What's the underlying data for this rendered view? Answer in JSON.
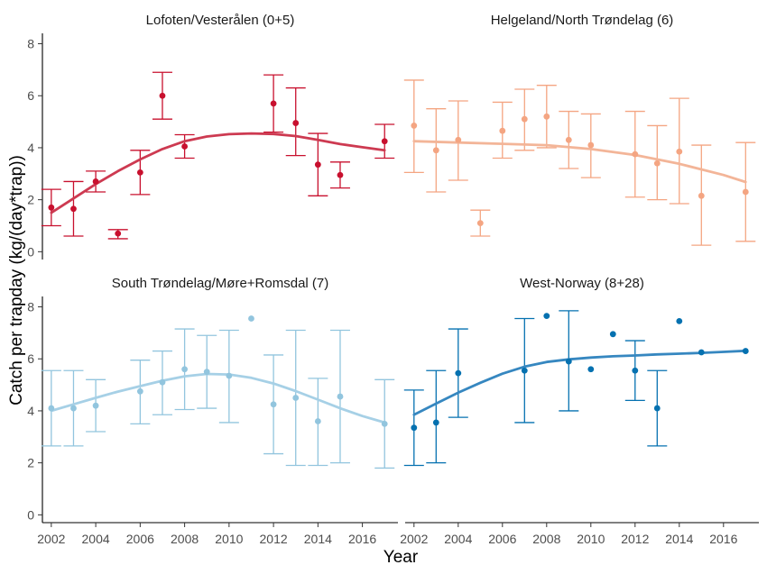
{
  "chart_data": {
    "type": "scatter",
    "xlabel": "Year",
    "ylabel": "Catch per trapday (kg/(day*trap))",
    "xlim": [
      2001.6,
      2017.6
    ],
    "ylim": [
      -0.3,
      8.4
    ],
    "x_ticks": [
      2002,
      2004,
      2006,
      2008,
      2010,
      2012,
      2014,
      2016
    ],
    "y_ticks": [
      0,
      2,
      4,
      6,
      8
    ],
    "grid": false,
    "legend": "none",
    "panels": [
      {
        "title": "Lofoten/Vesterålen (0+5)",
        "color": "#c8102e",
        "line_color": "#cd3a51",
        "points": [
          {
            "x": 2002,
            "y": 1.7,
            "lo": 1.0,
            "hi": 2.4
          },
          {
            "x": 2003,
            "y": 1.65,
            "lo": 0.6,
            "hi": 2.7
          },
          {
            "x": 2004,
            "y": 2.7,
            "lo": 2.3,
            "hi": 3.1
          },
          {
            "x": 2005,
            "y": 0.7,
            "lo": 0.5,
            "hi": 0.85
          },
          {
            "x": 2006,
            "y": 3.05,
            "lo": 2.2,
            "hi": 3.9
          },
          {
            "x": 2007,
            "y": 6.0,
            "lo": 5.1,
            "hi": 6.9
          },
          {
            "x": 2008,
            "y": 4.05,
            "lo": 3.6,
            "hi": 4.5
          },
          {
            "x": 2012,
            "y": 5.7,
            "lo": 4.6,
            "hi": 6.8
          },
          {
            "x": 2013,
            "y": 4.95,
            "lo": 3.7,
            "hi": 6.3
          },
          {
            "x": 2014,
            "y": 3.35,
            "lo": 2.15,
            "hi": 4.55
          },
          {
            "x": 2015,
            "y": 2.95,
            "lo": 2.45,
            "hi": 3.45
          },
          {
            "x": 2017,
            "y": 4.25,
            "lo": 3.6,
            "hi": 4.9
          }
        ],
        "trend": [
          [
            2002,
            1.5
          ],
          [
            2003,
            2.05
          ],
          [
            2004,
            2.6
          ],
          [
            2005,
            3.1
          ],
          [
            2006,
            3.55
          ],
          [
            2007,
            3.95
          ],
          [
            2008,
            4.25
          ],
          [
            2009,
            4.43
          ],
          [
            2010,
            4.52
          ],
          [
            2011,
            4.55
          ],
          [
            2012,
            4.53
          ],
          [
            2013,
            4.45
          ],
          [
            2014,
            4.3
          ],
          [
            2015,
            4.14
          ],
          [
            2016,
            4.02
          ],
          [
            2017,
            3.9
          ]
        ]
      },
      {
        "title": "Helgeland/North Trøndelag (6)",
        "color": "#f4a582",
        "line_color": "#f3b598",
        "points": [
          {
            "x": 2002,
            "y": 4.85,
            "lo": 3.05,
            "hi": 6.6
          },
          {
            "x": 2003,
            "y": 3.9,
            "lo": 2.3,
            "hi": 5.5
          },
          {
            "x": 2004,
            "y": 4.3,
            "lo": 2.75,
            "hi": 5.8
          },
          {
            "x": 2005,
            "y": 1.1,
            "lo": 0.6,
            "hi": 1.6
          },
          {
            "x": 2006,
            "y": 4.65,
            "lo": 3.6,
            "hi": 5.75
          },
          {
            "x": 2007,
            "y": 5.1,
            "lo": 3.9,
            "hi": 6.25
          },
          {
            "x": 2008,
            "y": 5.2,
            "lo": 4.0,
            "hi": 6.4
          },
          {
            "x": 2009,
            "y": 4.3,
            "lo": 3.2,
            "hi": 5.4
          },
          {
            "x": 2010,
            "y": 4.1,
            "lo": 2.85,
            "hi": 5.3
          },
          {
            "x": 2012,
            "y": 3.75,
            "lo": 2.1,
            "hi": 5.4
          },
          {
            "x": 2013,
            "y": 3.4,
            "lo": 2.0,
            "hi": 4.85
          },
          {
            "x": 2014,
            "y": 3.85,
            "lo": 1.85,
            "hi": 5.9
          },
          {
            "x": 2015,
            "y": 2.15,
            "lo": 0.25,
            "hi": 4.1
          },
          {
            "x": 2017,
            "y": 2.3,
            "lo": 0.4,
            "hi": 4.2
          }
        ],
        "trend": [
          [
            2002,
            4.25
          ],
          [
            2004,
            4.2
          ],
          [
            2006,
            4.15
          ],
          [
            2008,
            4.1
          ],
          [
            2010,
            3.95
          ],
          [
            2012,
            3.72
          ],
          [
            2014,
            3.38
          ],
          [
            2016,
            2.95
          ],
          [
            2017,
            2.68
          ]
        ]
      },
      {
        "title": "South Trøndelag/Møre+Romsdal (7)",
        "color": "#92c5de",
        "line_color": "#a6d0e6",
        "points": [
          {
            "x": 2002,
            "y": 4.1,
            "lo": 2.65,
            "hi": 5.55
          },
          {
            "x": 2003,
            "y": 4.1,
            "lo": 2.65,
            "hi": 5.55
          },
          {
            "x": 2004,
            "y": 4.2,
            "lo": 3.2,
            "hi": 5.2
          },
          {
            "x": 2006,
            "y": 4.75,
            "lo": 3.5,
            "hi": 5.95
          },
          {
            "x": 2007,
            "y": 5.1,
            "lo": 3.85,
            "hi": 6.3
          },
          {
            "x": 2008,
            "y": 5.6,
            "lo": 4.05,
            "hi": 7.15
          },
          {
            "x": 2009,
            "y": 5.5,
            "lo": 4.1,
            "hi": 6.9
          },
          {
            "x": 2010,
            "y": 5.35,
            "lo": 3.55,
            "hi": 7.1
          },
          {
            "x": 2011,
            "y": 7.55,
            "lo": null,
            "hi": null
          },
          {
            "x": 2012,
            "y": 4.25,
            "lo": 2.35,
            "hi": 6.15
          },
          {
            "x": 2013,
            "y": 4.5,
            "lo": 1.9,
            "hi": 7.1
          },
          {
            "x": 2014,
            "y": 3.6,
            "lo": 1.9,
            "hi": 5.25
          },
          {
            "x": 2015,
            "y": 4.55,
            "lo": 2.0,
            "hi": 7.1
          },
          {
            "x": 2017,
            "y": 3.5,
            "lo": 1.8,
            "hi": 5.2
          }
        ],
        "trend": [
          [
            2002,
            4.0
          ],
          [
            2003,
            4.25
          ],
          [
            2004,
            4.5
          ],
          [
            2005,
            4.74
          ],
          [
            2006,
            4.95
          ],
          [
            2007,
            5.16
          ],
          [
            2008,
            5.33
          ],
          [
            2009,
            5.42
          ],
          [
            2010,
            5.4
          ],
          [
            2011,
            5.27
          ],
          [
            2012,
            5.05
          ],
          [
            2013,
            4.76
          ],
          [
            2014,
            4.43
          ],
          [
            2015,
            4.1
          ],
          [
            2016,
            3.8
          ],
          [
            2017,
            3.55
          ]
        ]
      },
      {
        "title": "West-Norway (8+28)",
        "color": "#0571b0",
        "line_color": "#3687c0",
        "points": [
          {
            "x": 2002,
            "y": 3.35,
            "lo": 1.9,
            "hi": 4.8
          },
          {
            "x": 2003,
            "y": 3.55,
            "lo": 2.0,
            "hi": 5.55
          },
          {
            "x": 2004,
            "y": 5.45,
            "lo": 3.75,
            "hi": 7.15
          },
          {
            "x": 2007,
            "y": 5.55,
            "lo": 3.55,
            "hi": 7.55
          },
          {
            "x": 2008,
            "y": 7.65,
            "lo": null,
            "hi": null
          },
          {
            "x": 2009,
            "y": 5.9,
            "lo": 4.0,
            "hi": 7.85
          },
          {
            "x": 2010,
            "y": 5.6,
            "lo": null,
            "hi": null
          },
          {
            "x": 2011,
            "y": 6.95,
            "lo": null,
            "hi": null
          },
          {
            "x": 2012,
            "y": 5.55,
            "lo": 4.4,
            "hi": 6.7
          },
          {
            "x": 2013,
            "y": 4.1,
            "lo": 2.65,
            "hi": 5.55
          },
          {
            "x": 2014,
            "y": 7.45,
            "lo": null,
            "hi": null
          },
          {
            "x": 2015,
            "y": 6.25,
            "lo": null,
            "hi": null
          },
          {
            "x": 2017,
            "y": 6.3,
            "lo": null,
            "hi": null
          }
        ],
        "trend": [
          [
            2002,
            3.85
          ],
          [
            2003,
            4.28
          ],
          [
            2004,
            4.7
          ],
          [
            2005,
            5.08
          ],
          [
            2006,
            5.43
          ],
          [
            2007,
            5.7
          ],
          [
            2008,
            5.88
          ],
          [
            2009,
            5.98
          ],
          [
            2010,
            6.05
          ],
          [
            2011,
            6.1
          ],
          [
            2012,
            6.13
          ],
          [
            2013,
            6.17
          ],
          [
            2014,
            6.2
          ],
          [
            2015,
            6.23
          ],
          [
            2016,
            6.27
          ],
          [
            2017,
            6.31
          ]
        ]
      }
    ]
  }
}
